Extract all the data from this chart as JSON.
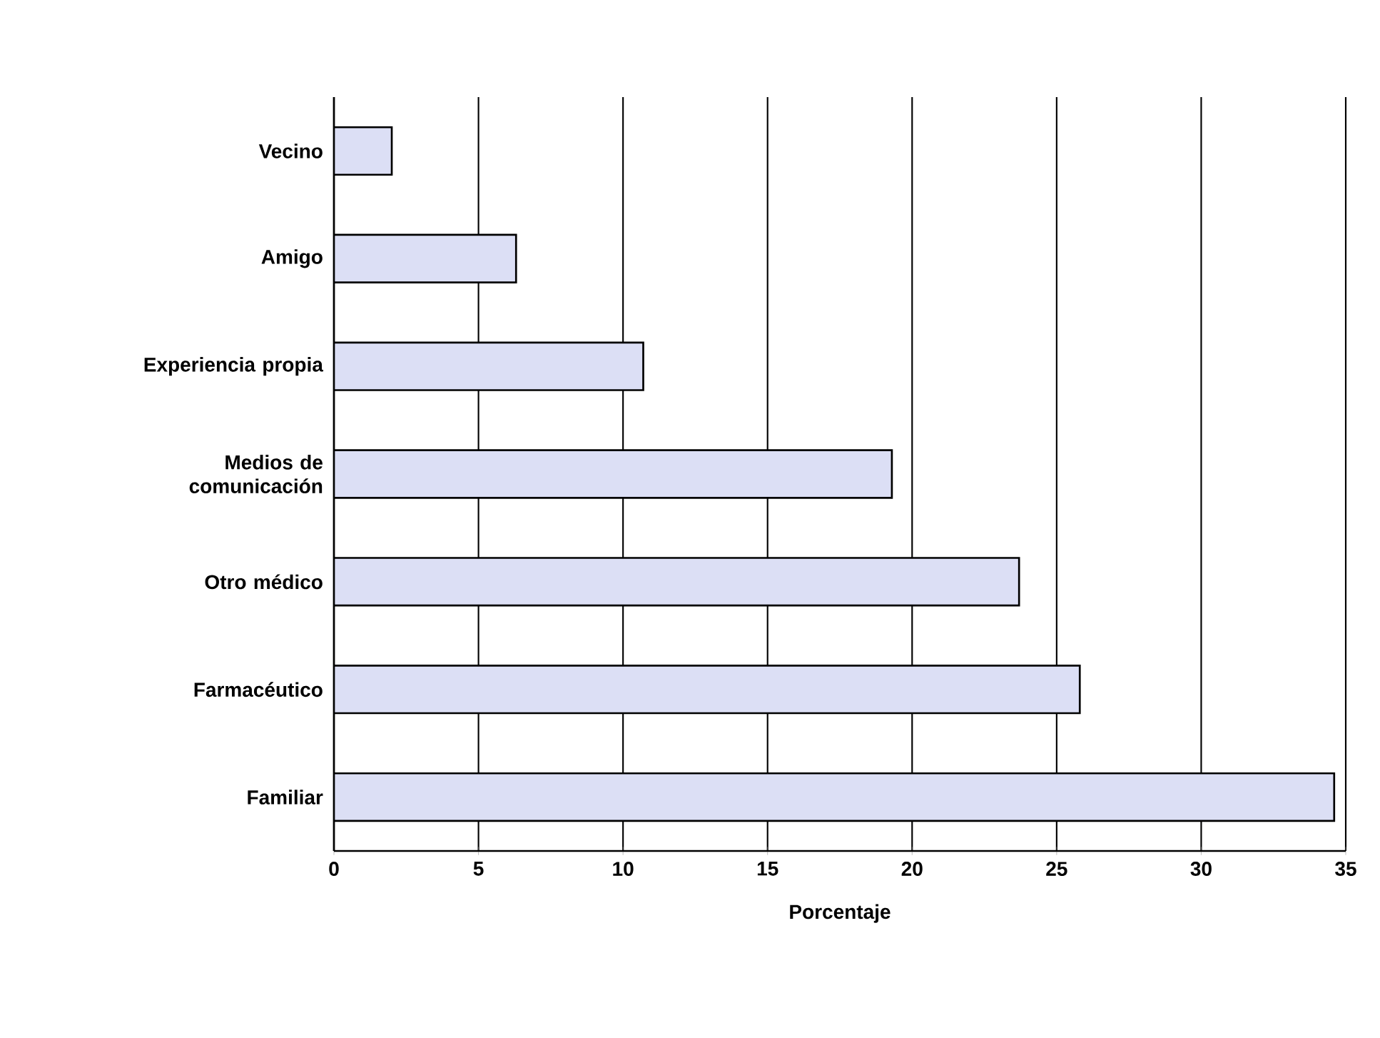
{
  "chart_data": {
    "type": "bar",
    "orientation": "horizontal",
    "categories": [
      "Vecino",
      "Amigo",
      "Experiencia propia",
      "Medios de comunicación",
      "Otro médico",
      "Farmacéutico",
      "Familiar"
    ],
    "values": [
      2.0,
      6.3,
      10.7,
      19.3,
      23.7,
      25.8,
      34.6
    ],
    "color": "#dcdff5",
    "xlabel": "Porcentaje",
    "xlim": [
      0,
      35
    ],
    "xticks": [
      0,
      5,
      10,
      15,
      20,
      25,
      30,
      35
    ],
    "grid": "x"
  }
}
